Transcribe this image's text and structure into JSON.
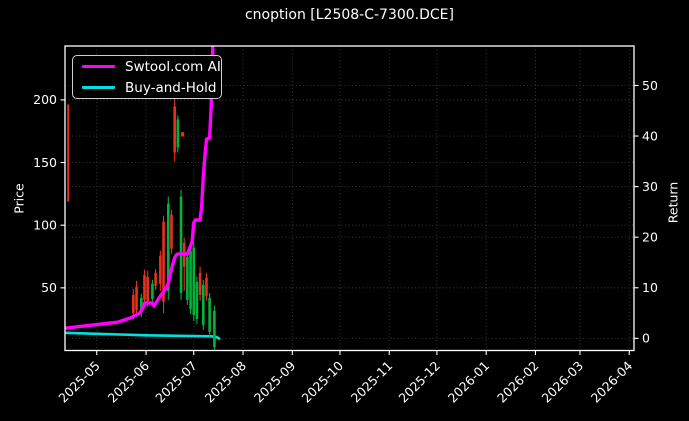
{
  "title": "cnoption [L2508-C-7300.DCE]",
  "chart_data": {
    "type": "candlestick+line",
    "title": "cnoption [L2508-C-7300.DCE]",
    "x_axis": {
      "tick_labels": [
        "2025-05",
        "2025-06",
        "2025-07",
        "2025-08",
        "2025-09",
        "2025-10",
        "2025-11",
        "2025-12",
        "2026-01",
        "2026-02",
        "2026-03",
        "2026-04"
      ],
      "rotation": 45,
      "range": [
        "2025-04-11",
        "2026-04-04"
      ]
    },
    "left_axis": {
      "label": "Price",
      "ticks": [
        50,
        100,
        150,
        200
      ],
      "range": [
        0,
        243
      ]
    },
    "right_axis": {
      "label": "Return",
      "ticks": [
        0,
        10,
        20,
        30,
        40,
        50
      ],
      "range": [
        -2.4,
        57.8
      ]
    },
    "grid": true,
    "legend": {
      "position": "upper-left",
      "entries": [
        {
          "label": "Swtool.com AI",
          "color": "#ff00ff"
        },
        {
          "label": "Buy-and-Hold",
          "color": "#00e0e0"
        }
      ]
    },
    "colors": {
      "background": "#000000",
      "text": "#ffffff",
      "grid": "#3c3c3c",
      "frame": "#ffffff",
      "up_candle": "#e8301f",
      "down_candle": "#00b33c",
      "ai_line": "#ff00ff",
      "buy_hold_line": "#00e0e0"
    },
    "candles": [
      {
        "d": "2025-04-13",
        "o": 147.6,
        "h": 196.4,
        "l": 118.8,
        "c": 167.6,
        "dir": "up",
        "thin": true
      },
      {
        "d": "2025-05-24",
        "o": 30.0,
        "h": 49.2,
        "l": 25.2,
        "c": 44.4,
        "dir": "up"
      },
      {
        "d": "2025-05-26",
        "o": 32.4,
        "h": 55.6,
        "l": 27.6,
        "c": 50.8,
        "dir": "up"
      },
      {
        "d": "2025-05-29",
        "o": 42.0,
        "h": 45.2,
        "l": 26.8,
        "c": 30.8,
        "dir": "down"
      },
      {
        "d": "2025-05-31",
        "o": 40.4,
        "h": 64.4,
        "l": 37.2,
        "c": 60.4,
        "dir": "up"
      },
      {
        "d": "2025-06-02",
        "o": 39.6,
        "h": 63.6,
        "l": 34.8,
        "c": 58.8,
        "dir": "up"
      },
      {
        "d": "2025-06-05",
        "o": 53.2,
        "h": 56.4,
        "l": 38.0,
        "c": 41.2,
        "dir": "down"
      },
      {
        "d": "2025-06-07",
        "o": 51.6,
        "h": 65.2,
        "l": 48.4,
        "c": 62.0,
        "dir": "up"
      },
      {
        "d": "2025-06-10",
        "o": 53.2,
        "h": 79.6,
        "l": 47.6,
        "c": 75.6,
        "dir": "up"
      },
      {
        "d": "2025-06-12",
        "o": 38.8,
        "h": 107.6,
        "l": 30.0,
        "c": 102.8,
        "dir": "up"
      },
      {
        "d": "2025-06-15",
        "o": 117.2,
        "h": 122.8,
        "l": 40.4,
        "c": 47.6,
        "dir": "down"
      },
      {
        "d": "2025-06-17",
        "o": 81.2,
        "h": 112.4,
        "l": 77.2,
        "c": 108.4,
        "dir": "up"
      },
      {
        "d": "2025-06-19",
        "o": 158.0,
        "h": 201.2,
        "l": 150.8,
        "c": 194.8,
        "dir": "up"
      },
      {
        "d": "2025-06-21",
        "o": 184.4,
        "h": 187.6,
        "l": 158.0,
        "c": 162.0,
        "dir": "down"
      },
      {
        "d": "2025-06-23",
        "o": 122.8,
        "h": 128.4,
        "l": 40.4,
        "c": 46.0,
        "dir": "down"
      },
      {
        "d": "2025-06-24",
        "mark": true,
        "price": 172.5,
        "dir": "up"
      },
      {
        "d": "2025-06-25",
        "o": 66.8,
        "h": 90.0,
        "l": 47.6,
        "c": 86.0,
        "dir": "up"
      },
      {
        "d": "2025-06-27",
        "o": 74.8,
        "h": 78.8,
        "l": 36.4,
        "c": 40.4,
        "dir": "down"
      },
      {
        "d": "2025-06-29",
        "o": 79.6,
        "h": 84.4,
        "l": 29.2,
        "c": 33.2,
        "dir": "down"
      },
      {
        "d": "2025-07-01",
        "o": 82.0,
        "h": 86.8,
        "l": 23.6,
        "c": 28.4,
        "dir": "down"
      },
      {
        "d": "2025-07-03",
        "o": 54.8,
        "h": 58.8,
        "l": 21.2,
        "c": 25.2,
        "dir": "down"
      },
      {
        "d": "2025-07-05",
        "o": 44.4,
        "h": 66.8,
        "l": 39.6,
        "c": 62.0,
        "dir": "up"
      },
      {
        "d": "2025-07-07",
        "o": 52.4,
        "h": 56.4,
        "l": 16.4,
        "c": 20.4,
        "dir": "down"
      },
      {
        "d": "2025-07-09",
        "o": 58.0,
        "h": 62.0,
        "l": 39.6,
        "c": 43.6,
        "dir": "up"
      },
      {
        "d": "2025-07-11",
        "o": 42.0,
        "h": 46.0,
        "l": 10.8,
        "c": 14.8,
        "dir": "down"
      },
      {
        "d": "2025-07-14",
        "o": 31.6,
        "h": 35.6,
        "l": 0.4,
        "c": 2.8,
        "dir": "down"
      }
    ],
    "series": [
      {
        "name": "Buy-and-Hold",
        "axis": "right",
        "color": "#00e0e0",
        "width": 2.6,
        "points": [
          [
            "2025-04-11",
            1.1
          ],
          [
            "2025-05-01",
            0.9
          ],
          [
            "2025-06-01",
            0.6
          ],
          [
            "2025-07-01",
            0.45
          ],
          [
            "2025-07-12",
            0.4
          ],
          [
            "2025-07-15",
            0.3
          ],
          [
            "2025-07-17",
            -0.05
          ]
        ]
      },
      {
        "name": "Swtool.com AI",
        "axis": "right",
        "color": "#ff00ff",
        "width": 3.4,
        "points": [
          [
            "2025-04-11",
            2.0
          ],
          [
            "2025-04-22",
            2.4
          ],
          [
            "2025-05-03",
            2.8
          ],
          [
            "2025-05-14",
            3.2
          ],
          [
            "2025-05-22",
            4.0
          ],
          [
            "2025-05-28",
            5.0
          ],
          [
            "2025-05-30",
            6.0
          ],
          [
            "2025-05-31",
            7.0
          ],
          [
            "2025-06-05",
            7.0
          ],
          [
            "2025-06-06",
            6.4
          ],
          [
            "2025-06-08",
            7.4
          ],
          [
            "2025-06-10",
            8.4
          ],
          [
            "2025-06-12",
            9.2
          ],
          [
            "2025-06-14",
            10.1
          ],
          [
            "2025-06-15",
            10.9
          ],
          [
            "2025-06-16",
            12.3
          ],
          [
            "2025-06-17",
            13.7
          ],
          [
            "2025-06-18",
            14.9
          ],
          [
            "2025-06-19",
            15.9
          ],
          [
            "2025-06-20",
            16.5
          ],
          [
            "2025-06-21",
            16.7
          ],
          [
            "2025-06-27",
            16.7
          ],
          [
            "2025-06-29",
            18.3
          ],
          [
            "2025-06-30",
            19.2
          ],
          [
            "2025-07-01",
            22.8
          ],
          [
            "2025-07-02",
            23.4
          ],
          [
            "2025-07-05",
            23.4
          ],
          [
            "2025-07-06",
            26.2
          ],
          [
            "2025-07-07",
            32.1
          ],
          [
            "2025-07-08",
            36.0
          ],
          [
            "2025-07-09",
            39.4
          ],
          [
            "2025-07-11",
            39.6
          ],
          [
            "2025-07-12",
            45.9
          ],
          [
            "2025-07-13",
            58.0
          ]
        ]
      }
    ]
  }
}
